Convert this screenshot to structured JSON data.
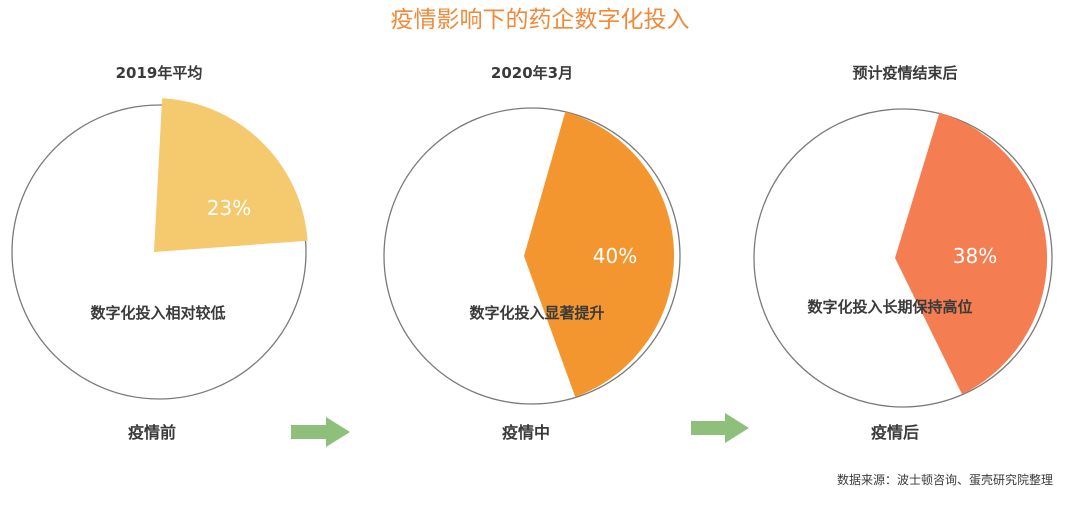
{
  "chart_data": {
    "type": "pie",
    "title": "疫情影响下的药企数字化投入",
    "charts": [
      {
        "period": "2019年平均",
        "value": 23,
        "value_label": "23%",
        "description": "数字化投入相对较低",
        "status": "疫情前",
        "color": "#f5c96e"
      },
      {
        "period": "2020年3月",
        "value": 40,
        "value_label": "40%",
        "description": "数字化投入显著提升",
        "status": "疫情中",
        "color": "#f39630"
      },
      {
        "period": "预计疫情结束后",
        "value": 38,
        "value_label": "38%",
        "description": "数字化投入长期保持高位",
        "status": "疫情后",
        "color": "#f47e52"
      }
    ],
    "source": "数据来源：波士顿咨询、蛋壳研究院整理",
    "arrow_color": "#8ec07c",
    "outline_color": "#7a7a7a"
  }
}
